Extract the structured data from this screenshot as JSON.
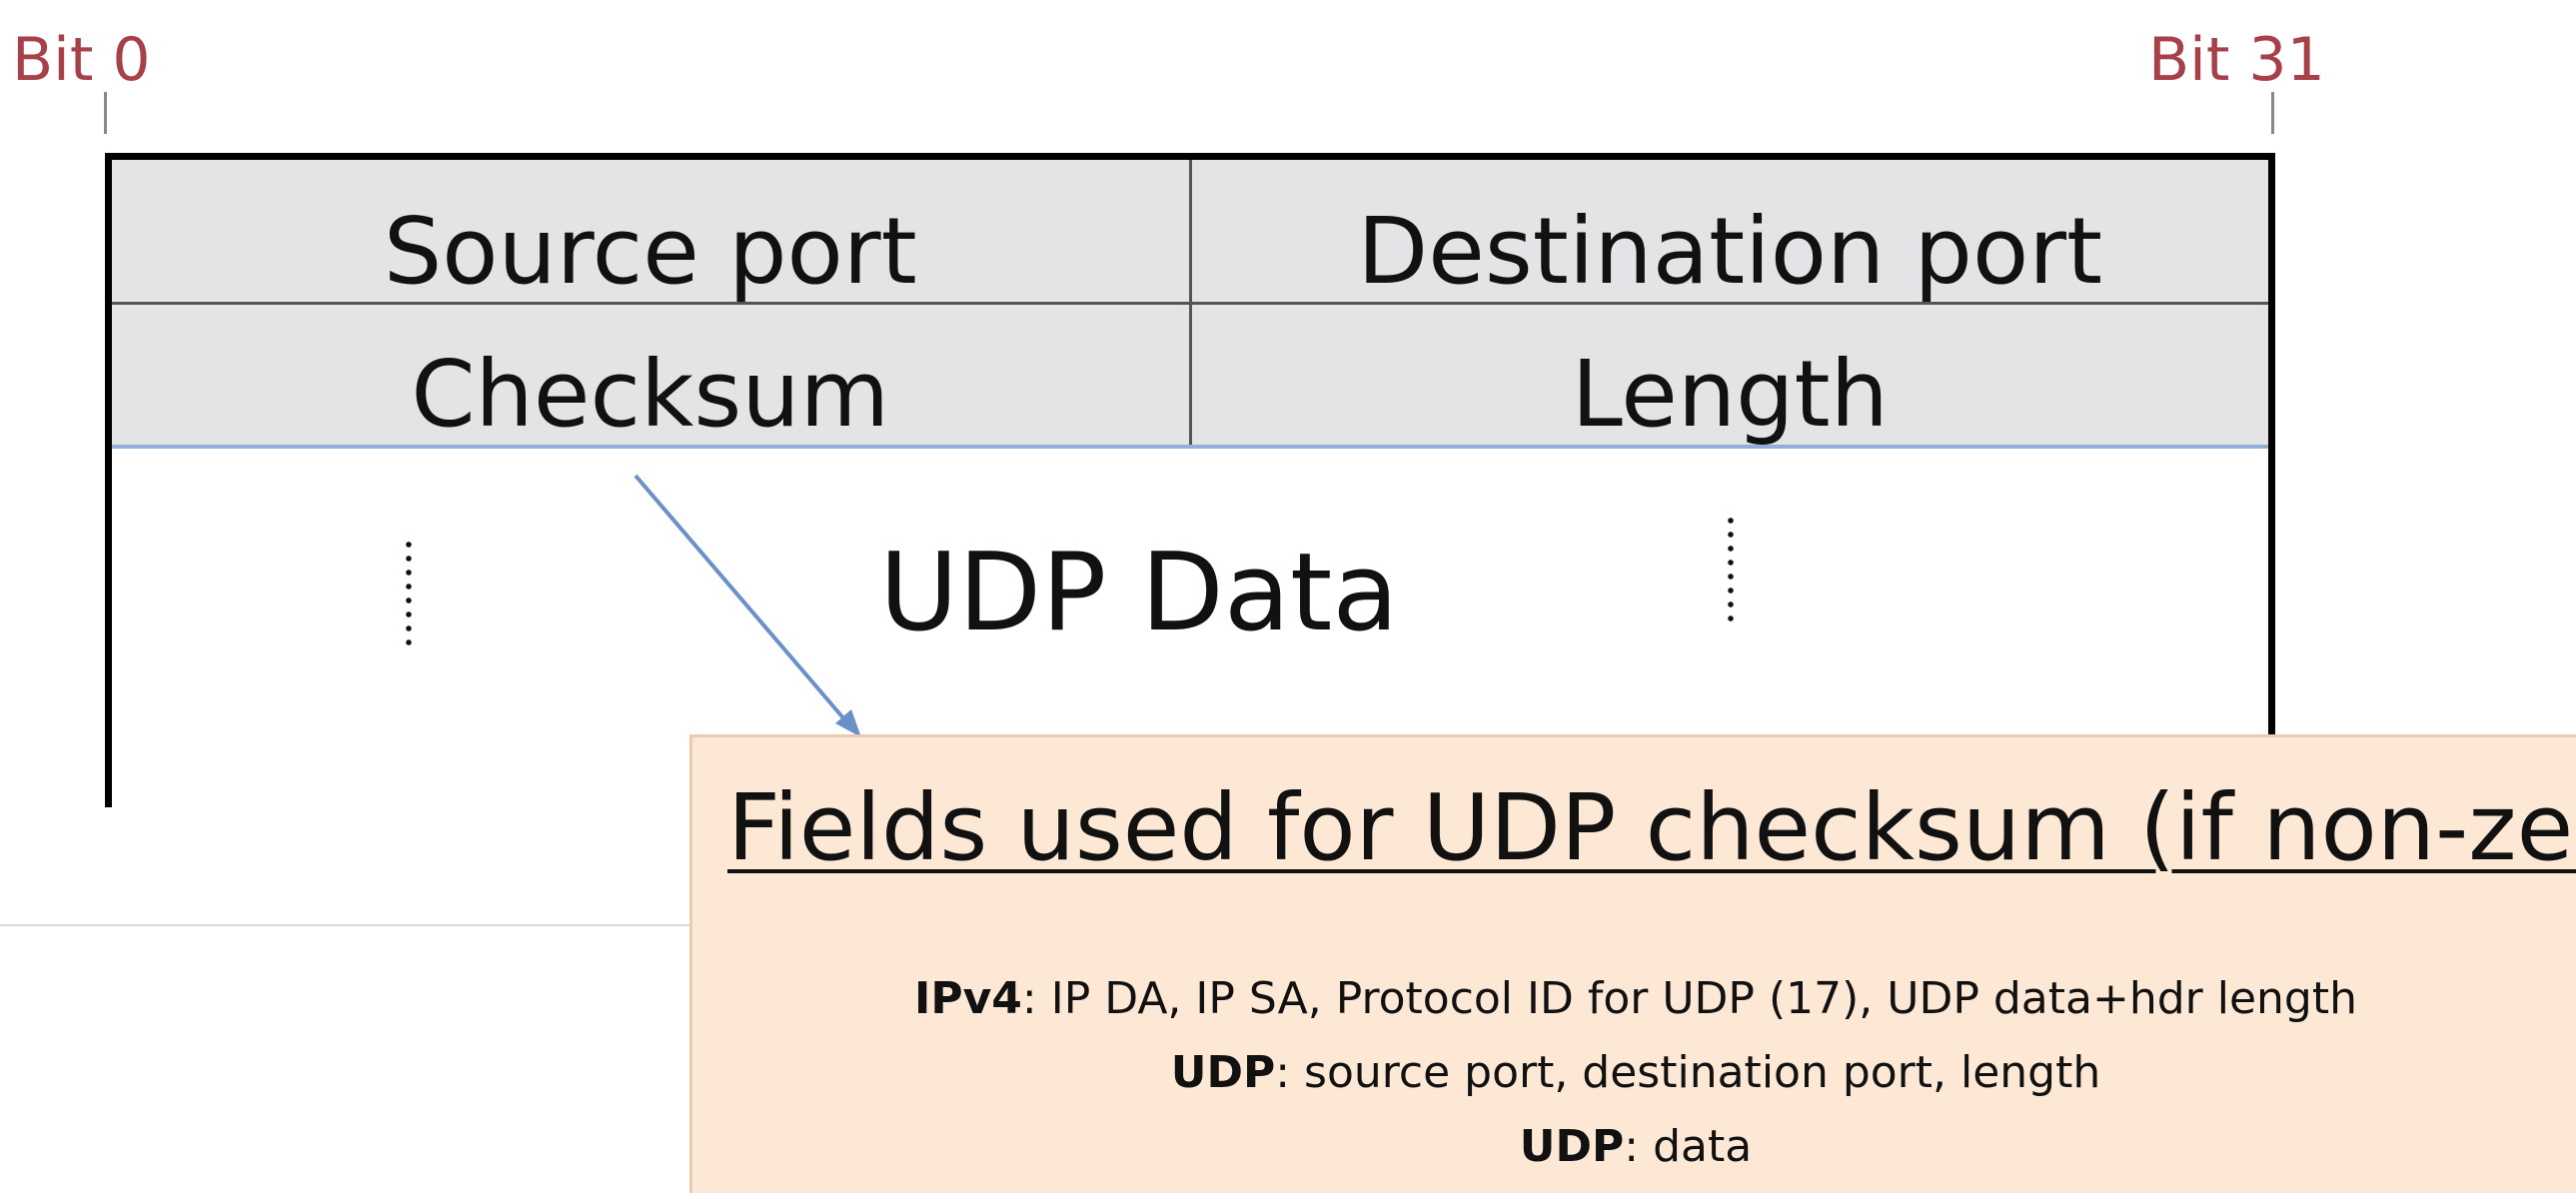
{
  "bits": {
    "start_label": "Bit 0",
    "end_label": "Bit 31"
  },
  "header": {
    "row1": {
      "left": "Source port",
      "right": "Destination port"
    },
    "row2": {
      "left": "Checksum",
      "right": "Length"
    }
  },
  "data_label": "UDP Data",
  "popup": {
    "title": "Fields used for UDP checksum (if non-zero)",
    "lines": [
      {
        "label": "IPv4",
        "text": ": IP DA, IP SA, Protocol ID for UDP (17), UDP data+hdr length"
      },
      {
        "label": "UDP",
        "text": ": source port, destination port, length"
      },
      {
        "label": "UDP",
        "text": ": data"
      }
    ]
  },
  "colors": {
    "bit_label": "#a8404a",
    "header_fill": "#e4e3e6",
    "popup_fill": "#fde8d6",
    "arrow": "#6a90c8"
  }
}
